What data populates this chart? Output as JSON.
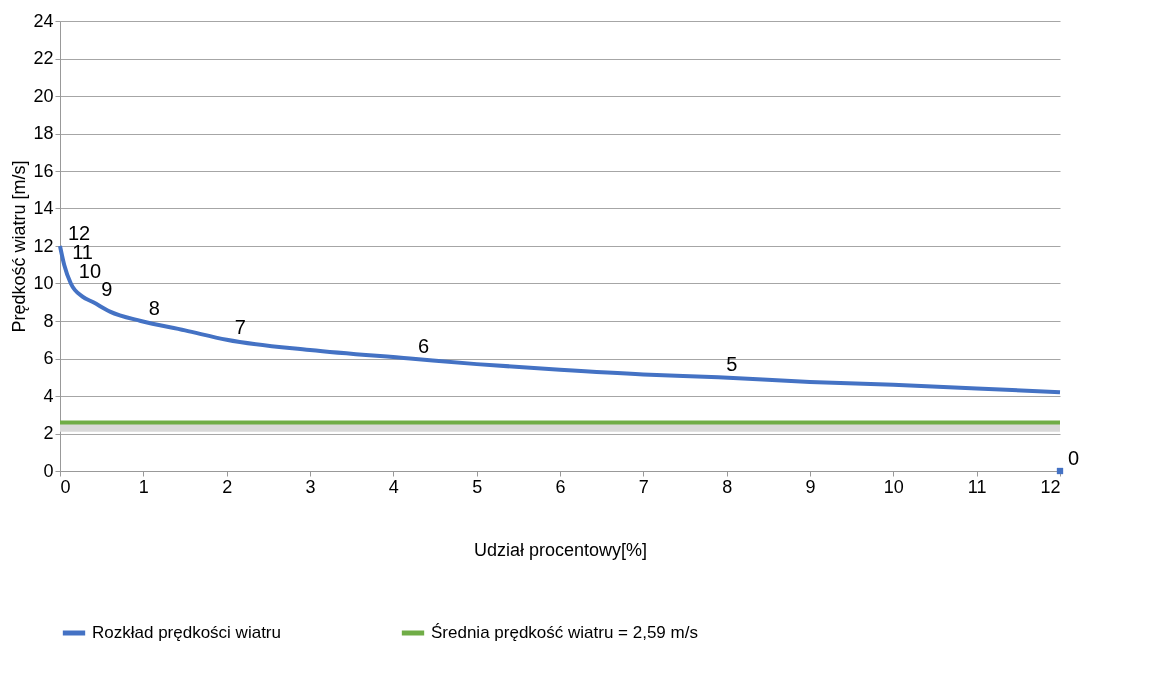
{
  "chart_data": {
    "type": "line",
    "xlabel": "Udział procentowy[%]",
    "ylabel": "Prędkość wiatru [m/s]",
    "xlim": [
      0,
      12
    ],
    "xticks": [
      0,
      1,
      2,
      3,
      4,
      5,
      6,
      7,
      8,
      9,
      10,
      11,
      12
    ],
    "ylim": [
      0,
      24
    ],
    "yticks": [
      0,
      2,
      4,
      6,
      8,
      10,
      12,
      14,
      16,
      18,
      20,
      22,
      24
    ],
    "grid": "y",
    "legend": "bottom",
    "line_style": "solid",
    "marker": "none",
    "series": [
      {
        "name": "Rozkład prędkości wiatru",
        "color": "#4472c4",
        "x": [
          0,
          0.05,
          0.13,
          0.27,
          0.4,
          0.6,
          0.97,
          1.5,
          2.0,
          3,
          4.2,
          5,
          6,
          7,
          7.9,
          9,
          10,
          11,
          12
        ],
        "values": [
          12,
          11,
          10,
          9.3,
          9,
          8.5,
          8,
          7.5,
          7,
          6.45,
          6,
          5.7,
          5.4,
          5.15,
          5,
          4.75,
          4.6,
          4.4,
          4.2
        ],
        "value_labels": [
          "12",
          "11",
          "10",
          null,
          "9",
          null,
          "8",
          null,
          "7",
          null,
          "6",
          null,
          null,
          null,
          "5",
          null,
          null,
          null,
          null
        ]
      },
      {
        "x": [
          12
        ],
        "color": "#4472c4",
        "type": "scatter",
        "marker": "square",
        "values": [
          0
        ],
        "value_labels": [
          "0"
        ]
      },
      {
        "name": "Średnia prędkość wiatru = 2,59 m/s",
        "color": "#70ad47",
        "x": [
          0,
          12
        ],
        "values": [
          2.59,
          2.59
        ]
      }
    ],
    "bands": [
      {
        "axis": "y",
        "from": 2.1,
        "to": 2.59,
        "color": "#d9d9d9"
      }
    ]
  }
}
